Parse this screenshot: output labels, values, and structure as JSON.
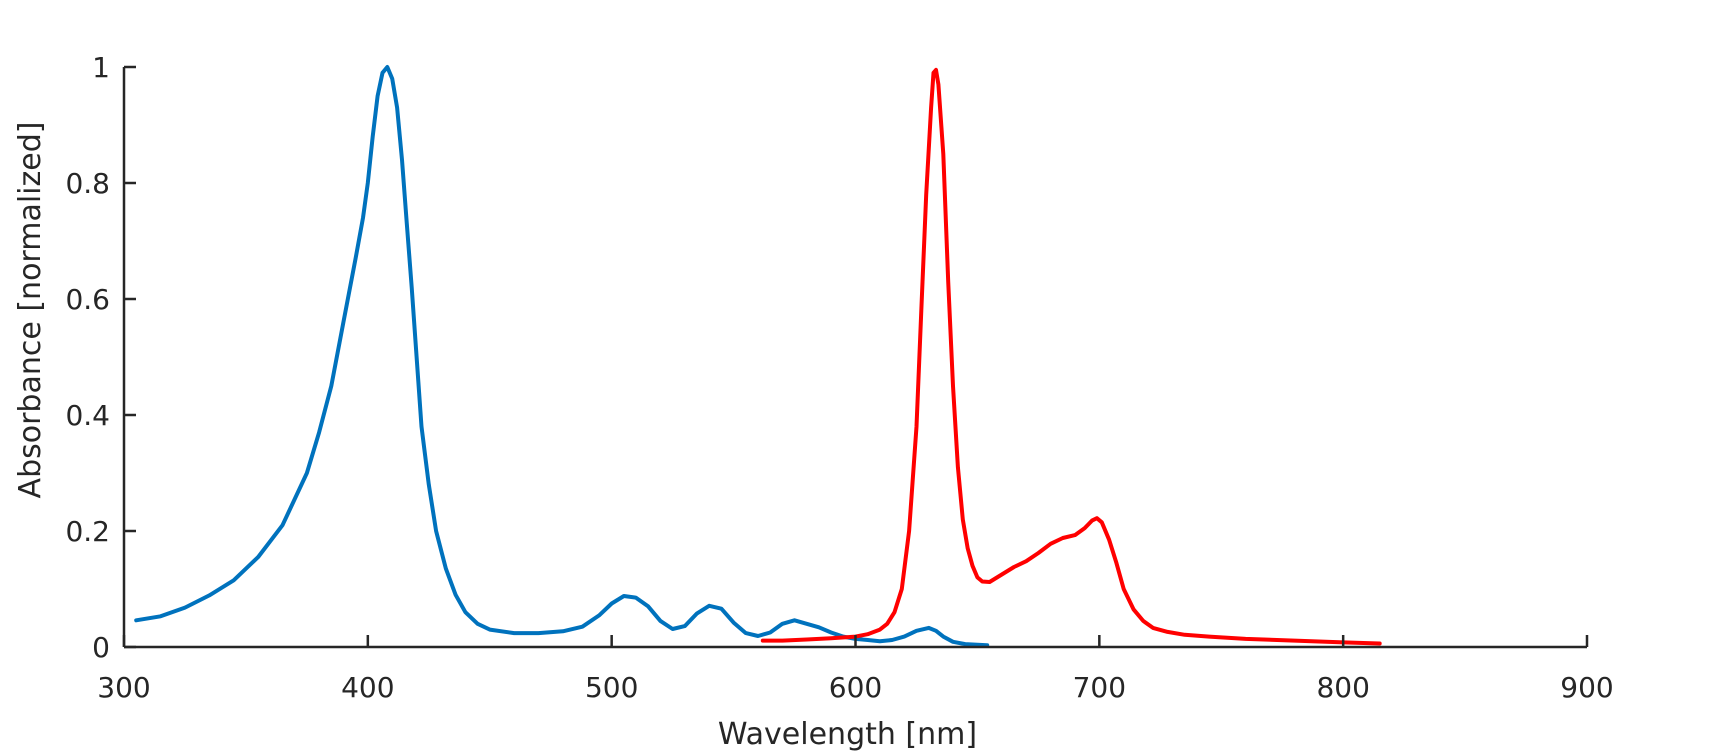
{
  "chart_data": {
    "type": "line",
    "title": "",
    "xlabel": "Wavelength [nm]",
    "ylabel": "Absorbance [normalized]",
    "xlim": [
      300,
      900
    ],
    "ylim": [
      0,
      1
    ],
    "xticks": [
      300,
      400,
      500,
      600,
      700,
      800,
      900
    ],
    "xtick_labels": [
      "300",
      "400",
      "500",
      "600",
      "700",
      "800",
      "900"
    ],
    "yticks": [
      0,
      0.2,
      0.4,
      0.6,
      0.8,
      1
    ],
    "ytick_labels": [
      "0",
      "0.2",
      "0.4",
      "0.6",
      "0.8",
      "1"
    ],
    "grid": false,
    "legend": "none",
    "series": [
      {
        "color": "#0072BD",
        "points": [
          [
            305,
            0.046
          ],
          [
            315,
            0.053
          ],
          [
            325,
            0.068
          ],
          [
            335,
            0.089
          ],
          [
            345,
            0.115
          ],
          [
            355,
            0.155
          ],
          [
            365,
            0.21
          ],
          [
            375,
            0.3
          ],
          [
            380,
            0.37
          ],
          [
            385,
            0.45
          ],
          [
            390,
            0.56
          ],
          [
            395,
            0.67
          ],
          [
            398,
            0.74
          ],
          [
            400,
            0.8
          ],
          [
            402,
            0.88
          ],
          [
            404,
            0.95
          ],
          [
            406,
            0.99
          ],
          [
            408,
            1.0
          ],
          [
            410,
            0.98
          ],
          [
            412,
            0.93
          ],
          [
            414,
            0.84
          ],
          [
            416,
            0.73
          ],
          [
            418,
            0.62
          ],
          [
            420,
            0.5
          ],
          [
            422,
            0.38
          ],
          [
            425,
            0.28
          ],
          [
            428,
            0.2
          ],
          [
            432,
            0.135
          ],
          [
            436,
            0.09
          ],
          [
            440,
            0.06
          ],
          [
            445,
            0.04
          ],
          [
            450,
            0.03
          ],
          [
            460,
            0.024
          ],
          [
            470,
            0.024
          ],
          [
            480,
            0.027
          ],
          [
            488,
            0.035
          ],
          [
            495,
            0.055
          ],
          [
            500,
            0.075
          ],
          [
            505,
            0.088
          ],
          [
            510,
            0.085
          ],
          [
            515,
            0.07
          ],
          [
            520,
            0.045
          ],
          [
            525,
            0.031
          ],
          [
            530,
            0.036
          ],
          [
            535,
            0.058
          ],
          [
            540,
            0.071
          ],
          [
            545,
            0.066
          ],
          [
            550,
            0.042
          ],
          [
            555,
            0.024
          ],
          [
            560,
            0.019
          ],
          [
            565,
            0.025
          ],
          [
            570,
            0.04
          ],
          [
            575,
            0.046
          ],
          [
            580,
            0.04
          ],
          [
            585,
            0.034
          ],
          [
            590,
            0.025
          ],
          [
            595,
            0.018
          ],
          [
            600,
            0.014
          ],
          [
            605,
            0.012
          ],
          [
            610,
            0.01
          ],
          [
            615,
            0.012
          ],
          [
            620,
            0.018
          ],
          [
            625,
            0.028
          ],
          [
            630,
            0.033
          ],
          [
            633,
            0.028
          ],
          [
            636,
            0.018
          ],
          [
            640,
            0.009
          ],
          [
            645,
            0.005
          ],
          [
            650,
            0.004
          ],
          [
            654,
            0.003
          ]
        ]
      },
      {
        "color": "#FF0000",
        "points": [
          [
            562,
            0.011
          ],
          [
            570,
            0.011
          ],
          [
            580,
            0.013
          ],
          [
            590,
            0.015
          ],
          [
            600,
            0.018
          ],
          [
            605,
            0.022
          ],
          [
            610,
            0.03
          ],
          [
            613,
            0.04
          ],
          [
            616,
            0.06
          ],
          [
            619,
            0.1
          ],
          [
            622,
            0.2
          ],
          [
            625,
            0.38
          ],
          [
            627,
            0.58
          ],
          [
            629,
            0.78
          ],
          [
            631,
            0.93
          ],
          [
            632,
            0.99
          ],
          [
            633,
            0.995
          ],
          [
            634,
            0.97
          ],
          [
            636,
            0.85
          ],
          [
            638,
            0.63
          ],
          [
            640,
            0.45
          ],
          [
            642,
            0.31
          ],
          [
            644,
            0.22
          ],
          [
            646,
            0.17
          ],
          [
            648,
            0.14
          ],
          [
            650,
            0.12
          ],
          [
            652,
            0.113
          ],
          [
            655,
            0.112
          ],
          [
            660,
            0.125
          ],
          [
            665,
            0.138
          ],
          [
            670,
            0.148
          ],
          [
            675,
            0.162
          ],
          [
            680,
            0.178
          ],
          [
            685,
            0.188
          ],
          [
            690,
            0.193
          ],
          [
            694,
            0.205
          ],
          [
            697,
            0.218
          ],
          [
            699,
            0.222
          ],
          [
            701,
            0.215
          ],
          [
            704,
            0.185
          ],
          [
            707,
            0.145
          ],
          [
            710,
            0.1
          ],
          [
            714,
            0.065
          ],
          [
            718,
            0.045
          ],
          [
            722,
            0.033
          ],
          [
            728,
            0.026
          ],
          [
            735,
            0.021
          ],
          [
            745,
            0.018
          ],
          [
            760,
            0.014
          ],
          [
            780,
            0.011
          ],
          [
            800,
            0.008
          ],
          [
            815,
            0.006
          ]
        ]
      }
    ]
  }
}
